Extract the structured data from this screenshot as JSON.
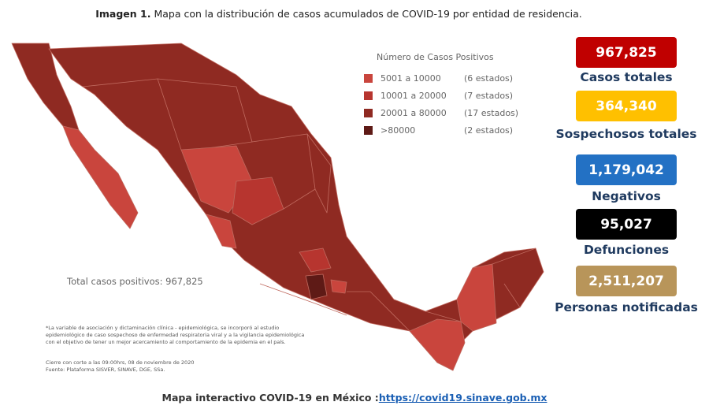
{
  "header": {
    "label": "Imagen 1.",
    "title": "Mapa con la distribución de casos acumulados de COVID-19 por entidad de residencia."
  },
  "legend": {
    "title": "Número de Casos Positivos",
    "items": [
      {
        "range": "5001 a 10000",
        "count": "(6 estados)",
        "color": "#c9453d"
      },
      {
        "range": "10001 a 20000",
        "count": "(7 estados)",
        "color": "#b7352f"
      },
      {
        "range": "20001 a 80000",
        "count": "(17 estados)",
        "color": "#8f2a22"
      },
      {
        "range": ">80000",
        "count": "(2 estados)",
        "color": "#5e1a16"
      }
    ]
  },
  "map_notes": {
    "total": "Total casos positivos: 967,825",
    "footnote": [
      "*La variable de asociación y dictaminación clínica - epidemiológica, se incorporó al estudio",
      "epidemiológico de caso sospechoso de enfermedad respiratoria viral y a la vigilancia epidemiológica",
      "con el objetivo de tener un mejor acercamiento al comportamiento de la epidemia en el país."
    ],
    "source": [
      "Cierre con corte a las 09:00hrs, 08 de noviembre de 2020",
      "Fuente: Plataforma SISVER, SINAVE, DGE, SSa."
    ]
  },
  "stats": [
    {
      "value": "967,825",
      "label": "Casos totales",
      "color": "#c00000"
    },
    {
      "value": "364,340",
      "label": "Sospechosos totales",
      "color": "#ffc000"
    },
    {
      "value": "1,179,042",
      "label": "Negativos",
      "color": "#2371c4"
    },
    {
      "value": "95,027",
      "label": "Defunciones",
      "color": "#000000"
    },
    {
      "value": "2,511,207",
      "label": "Personas notificadas",
      "color": "#b8955a"
    }
  ],
  "footer": {
    "text": "Mapa interactivo COVID-19 en México :",
    "link": "https://covid19.sinave.gob.mx"
  }
}
